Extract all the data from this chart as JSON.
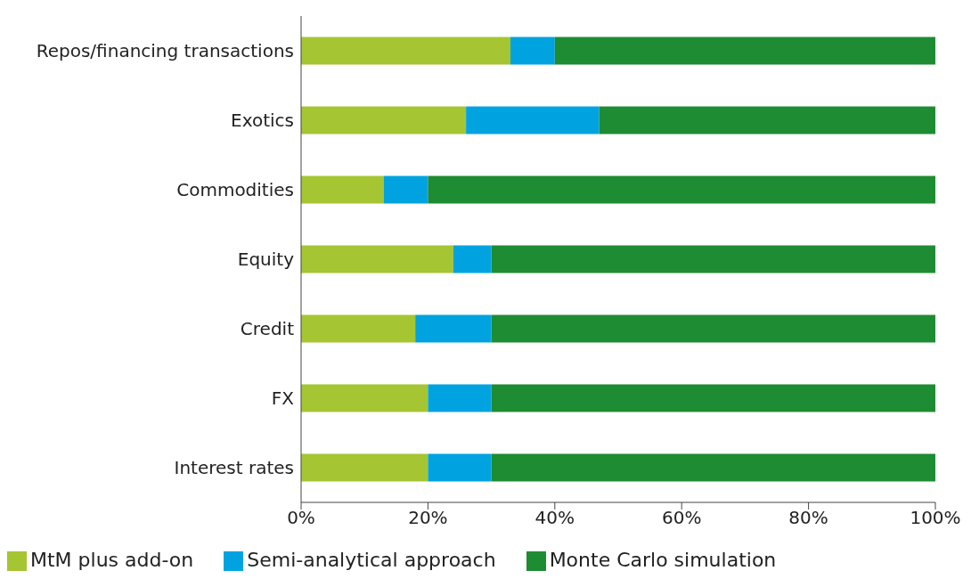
{
  "chart_data": {
    "type": "bar",
    "orientation": "horizontal",
    "stacked": true,
    "categories": [
      "Repos/financing transactions",
      "Exotics",
      "Commodities",
      "Equity",
      "Credit",
      "FX",
      "Interest rates"
    ],
    "series": [
      {
        "name": "MtM plus add-on",
        "color": "#a5c532",
        "values": [
          33,
          26,
          13,
          24,
          18,
          20,
          20
        ]
      },
      {
        "name": "Semi-analytical approach",
        "color": "#00a3e0",
        "values": [
          7,
          21,
          7,
          6,
          12,
          10,
          10
        ]
      },
      {
        "name": "Monte Carlo simulation",
        "color": "#1e8c32",
        "values": [
          60,
          53,
          80,
          70,
          70,
          70,
          70
        ]
      }
    ],
    "xlim": [
      0,
      100
    ],
    "xticks": [
      {
        "value": 0,
        "label": "0%"
      },
      {
        "value": 20,
        "label": "20%"
      },
      {
        "value": 40,
        "label": "40%"
      },
      {
        "value": 60,
        "label": "60%"
      },
      {
        "value": 80,
        "label": "80%"
      },
      {
        "value": 100,
        "label": "100%"
      }
    ],
    "grid": false,
    "legend": "bottom left"
  }
}
